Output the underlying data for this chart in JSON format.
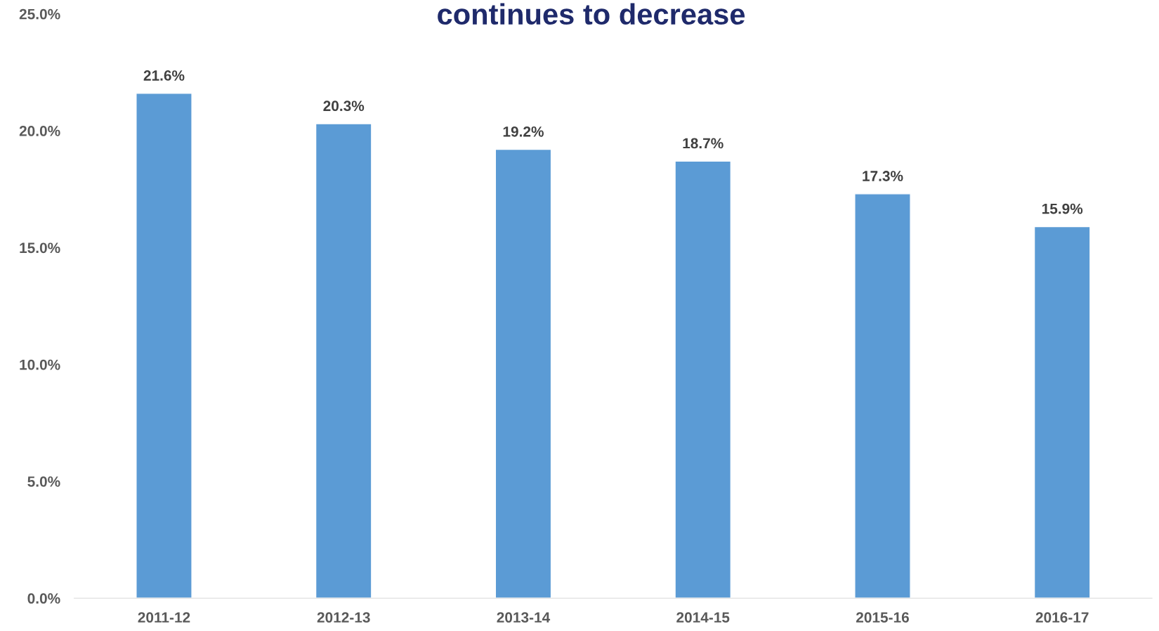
{
  "chart_data": {
    "type": "bar",
    "title": "continues to decrease",
    "categories": [
      "2011-12",
      "2012-13",
      "2013-14",
      "2014-15",
      "2015-16",
      "2016-17"
    ],
    "values": [
      21.6,
      20.3,
      19.2,
      18.7,
      17.3,
      15.9
    ],
    "value_labels": [
      "21.6%",
      "20.3%",
      "19.2%",
      "18.7%",
      "17.3%",
      "15.9%"
    ],
    "color": "#5b9bd5",
    "ylim": [
      0,
      25
    ],
    "yticks": [
      {
        "value": 0,
        "label": "0.0%"
      },
      {
        "value": 5,
        "label": "5.0%"
      },
      {
        "value": 10,
        "label": "10.0%"
      },
      {
        "value": 15,
        "label": "15.0%"
      },
      {
        "value": 20,
        "label": "20.0%"
      },
      {
        "value": 25,
        "label": "25.0%"
      }
    ],
    "grid": false,
    "legend": false
  }
}
